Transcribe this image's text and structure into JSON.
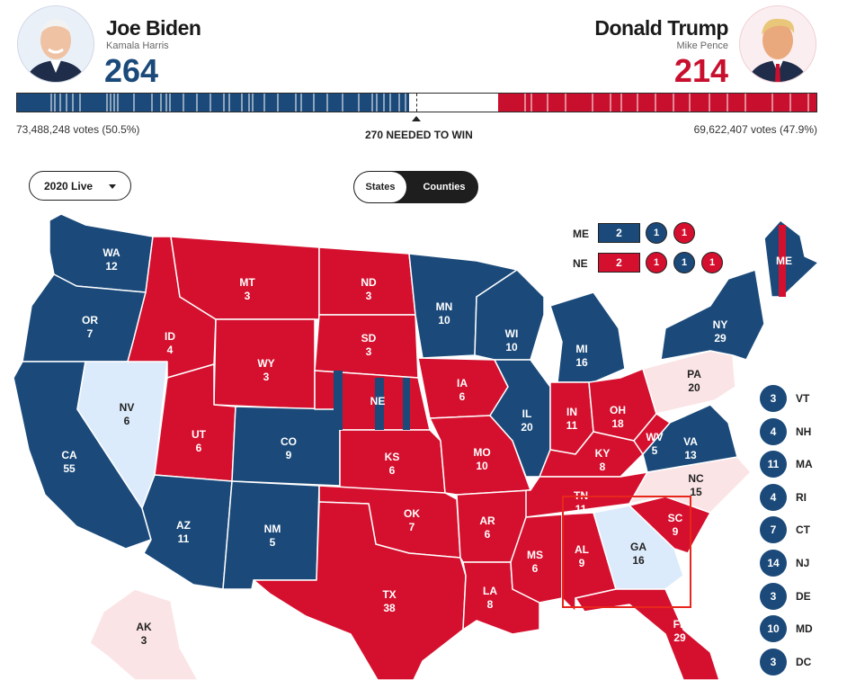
{
  "candidates": {
    "left": {
      "name": "Joe Biden",
      "running_mate": "Kamala Harris",
      "electoral_votes": "264",
      "popular_votes": "73,488,248 votes (50.5%)",
      "color": "#1b4a7a"
    },
    "right": {
      "name": "Donald Trump",
      "running_mate": "Mike Pence",
      "electoral_votes": "214",
      "popular_votes": "69,622,407 votes (47.9%)",
      "color": "#c8102e"
    }
  },
  "progress": {
    "total_electoral": 538,
    "needed_label": "270 NEEDED TO WIN"
  },
  "controls": {
    "year_dropdown": "2020 Live",
    "toggle_states": "States",
    "toggle_counties": "Counties",
    "active_toggle": "Counties"
  },
  "colors": {
    "dem": "#1b4a7a",
    "rep": "#d5102e",
    "lean_dem": "#dcebfb",
    "lean_rep": "#fbe4e6"
  },
  "map": {
    "states": [
      {
        "abbr": "WA",
        "ev": "12",
        "party": "dem"
      },
      {
        "abbr": "OR",
        "ev": "7",
        "party": "dem"
      },
      {
        "abbr": "CA",
        "ev": "55",
        "party": "dem"
      },
      {
        "abbr": "NV",
        "ev": "6",
        "party": "lean_dem"
      },
      {
        "abbr": "ID",
        "ev": "4",
        "party": "rep"
      },
      {
        "abbr": "MT",
        "ev": "3",
        "party": "rep"
      },
      {
        "abbr": "WY",
        "ev": "3",
        "party": "rep"
      },
      {
        "abbr": "UT",
        "ev": "6",
        "party": "rep"
      },
      {
        "abbr": "AZ",
        "ev": "11",
        "party": "dem"
      },
      {
        "abbr": "CO",
        "ev": "9",
        "party": "dem"
      },
      {
        "abbr": "NM",
        "ev": "5",
        "party": "dem"
      },
      {
        "abbr": "ND",
        "ev": "3",
        "party": "rep"
      },
      {
        "abbr": "SD",
        "ev": "3",
        "party": "rep"
      },
      {
        "abbr": "NE",
        "ev": "",
        "party": "rep"
      },
      {
        "abbr": "KS",
        "ev": "6",
        "party": "rep"
      },
      {
        "abbr": "OK",
        "ev": "7",
        "party": "rep"
      },
      {
        "abbr": "TX",
        "ev": "38",
        "party": "rep"
      },
      {
        "abbr": "MN",
        "ev": "10",
        "party": "dem"
      },
      {
        "abbr": "IA",
        "ev": "6",
        "party": "rep"
      },
      {
        "abbr": "MO",
        "ev": "10",
        "party": "rep"
      },
      {
        "abbr": "AR",
        "ev": "6",
        "party": "rep"
      },
      {
        "abbr": "LA",
        "ev": "8",
        "party": "rep"
      },
      {
        "abbr": "WI",
        "ev": "10",
        "party": "dem"
      },
      {
        "abbr": "IL",
        "ev": "20",
        "party": "dem"
      },
      {
        "abbr": "MI",
        "ev": "16",
        "party": "dem"
      },
      {
        "abbr": "IN",
        "ev": "11",
        "party": "rep"
      },
      {
        "abbr": "OH",
        "ev": "18",
        "party": "rep"
      },
      {
        "abbr": "KY",
        "ev": "8",
        "party": "rep"
      },
      {
        "abbr": "TN",
        "ev": "11",
        "party": "rep"
      },
      {
        "abbr": "MS",
        "ev": "6",
        "party": "rep"
      },
      {
        "abbr": "AL",
        "ev": "9",
        "party": "rep"
      },
      {
        "abbr": "GA",
        "ev": "16",
        "party": "lean_dem"
      },
      {
        "abbr": "FL",
        "ev": "29",
        "party": "rep"
      },
      {
        "abbr": "SC",
        "ev": "9",
        "party": "rep"
      },
      {
        "abbr": "NC",
        "ev": "15",
        "party": "lean_rep"
      },
      {
        "abbr": "VA",
        "ev": "13",
        "party": "dem"
      },
      {
        "abbr": "WV",
        "ev": "5",
        "party": "rep"
      },
      {
        "abbr": "PA",
        "ev": "20",
        "party": "lean_rep"
      },
      {
        "abbr": "NY",
        "ev": "29",
        "party": "dem"
      },
      {
        "abbr": "ME",
        "ev": "",
        "party": "dem"
      },
      {
        "abbr": "AK",
        "ev": "3",
        "party": "lean_rep"
      }
    ]
  },
  "split_states": [
    {
      "label": "ME",
      "box": "2",
      "box_party": "dem",
      "dots": [
        {
          "v": "1",
          "party": "dem"
        },
        {
          "v": "1",
          "party": "rep"
        }
      ]
    },
    {
      "label": "NE",
      "box": "2",
      "box_party": "rep",
      "dots": [
        {
          "v": "1",
          "party": "rep"
        },
        {
          "v": "1",
          "party": "dem"
        },
        {
          "v": "1",
          "party": "rep"
        }
      ]
    }
  ],
  "small_states": [
    {
      "abbr": "VT",
      "ev": "3"
    },
    {
      "abbr": "NH",
      "ev": "4"
    },
    {
      "abbr": "MA",
      "ev": "11"
    },
    {
      "abbr": "RI",
      "ev": "4"
    },
    {
      "abbr": "CT",
      "ev": "7"
    },
    {
      "abbr": "NJ",
      "ev": "14"
    },
    {
      "abbr": "DE",
      "ev": "3"
    },
    {
      "abbr": "MD",
      "ev": "10"
    },
    {
      "abbr": "DC",
      "ev": "3"
    }
  ]
}
